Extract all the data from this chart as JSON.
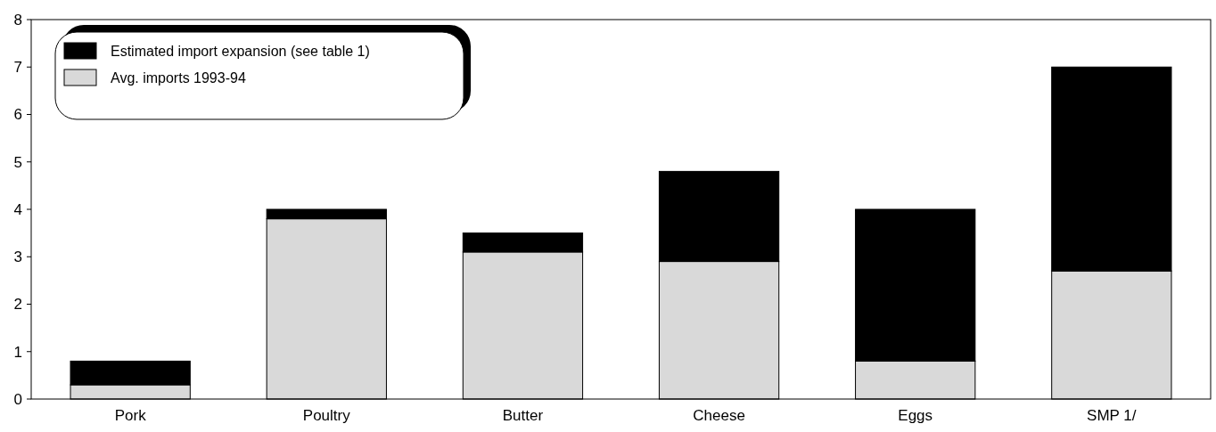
{
  "chart_data": {
    "type": "bar",
    "stacked": true,
    "categories": [
      "Pork",
      "Poultry",
      "Butter",
      "Cheese",
      "Eggs",
      "SMP 1/"
    ],
    "series": [
      {
        "name": "Avg. imports 1993-94",
        "color": "#d9d9d9",
        "values": [
          0.3,
          3.8,
          3.1,
          2.9,
          0.8,
          2.7
        ]
      },
      {
        "name": "Estimated import expansion (see table 1)",
        "color": "#000000",
        "values": [
          0.5,
          0.2,
          0.4,
          1.9,
          3.2,
          4.3
        ]
      }
    ],
    "ylim": [
      0,
      8
    ],
    "yticks": [
      0,
      1,
      2,
      3,
      4,
      5,
      6,
      7,
      8
    ],
    "grid": false,
    "legend": "top left"
  }
}
